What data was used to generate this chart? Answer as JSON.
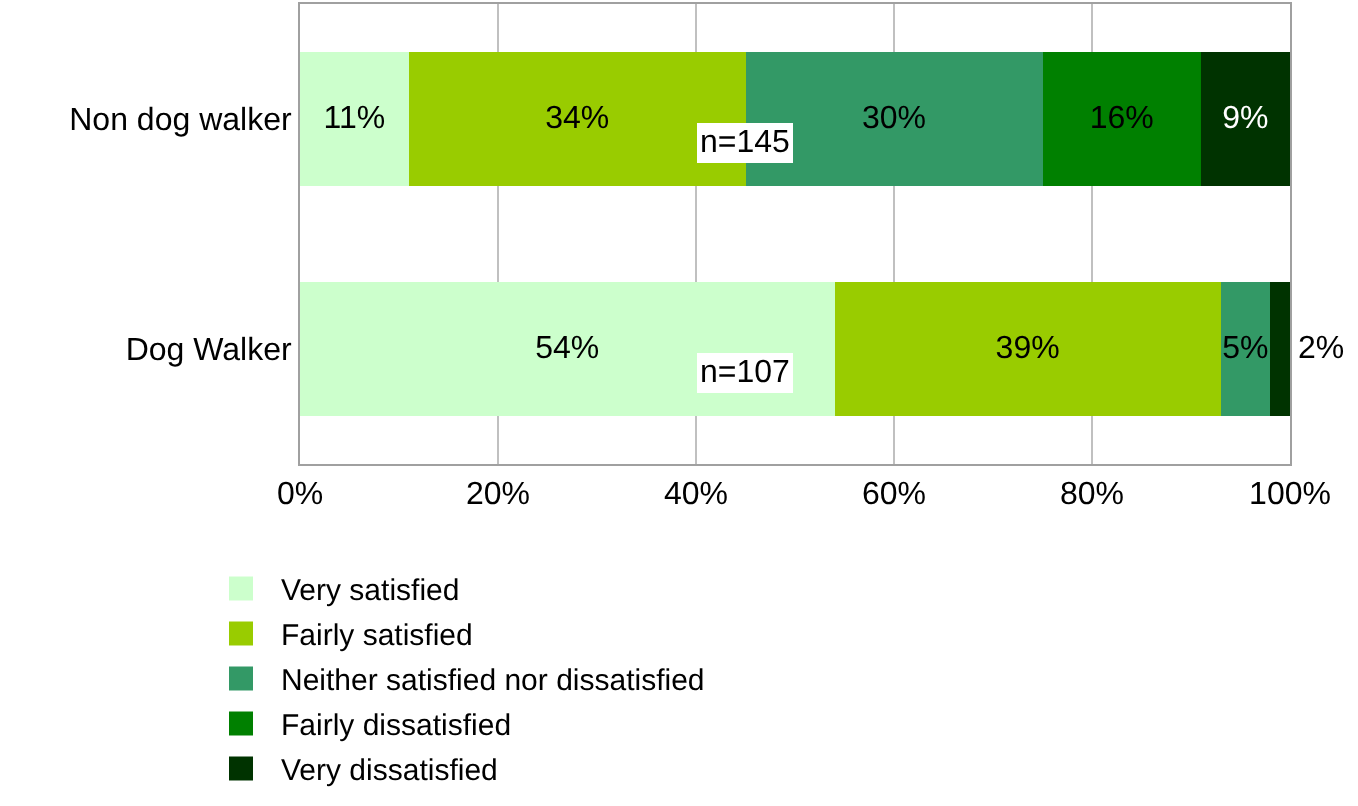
{
  "chart_data": {
    "type": "bar",
    "orientation": "horizontal",
    "stacked": true,
    "categories": [
      "Non dog walker",
      "Dog Walker"
    ],
    "series": [
      {
        "name": "Very satisfied",
        "color": "#ccffcc",
        "values": [
          11,
          54
        ],
        "value_labels": [
          "11%",
          "54%"
        ]
      },
      {
        "name": "Fairly satisfied",
        "color": "#99cc00",
        "values": [
          34,
          39
        ],
        "value_labels": [
          "34%",
          "39%"
        ]
      },
      {
        "name": "Neither satisfied nor dissatisfied",
        "color": "#339966",
        "values": [
          30,
          5
        ],
        "value_labels": [
          "30%",
          "5%"
        ]
      },
      {
        "name": "Fairly dissatisfied",
        "color": "#008000",
        "values": [
          16,
          0
        ],
        "value_labels": [
          "16%",
          null
        ]
      },
      {
        "name": "Very dissatisfied",
        "color": "#003300",
        "values": [
          9,
          2
        ],
        "value_labels": [
          "9%",
          "2%"
        ]
      }
    ],
    "xlim": [
      0,
      100
    ],
    "xticks": [
      {
        "value": 0,
        "label": "0%"
      },
      {
        "value": 20,
        "label": "20%"
      },
      {
        "value": 40,
        "label": "40%"
      },
      {
        "value": 60,
        "label": "60%"
      },
      {
        "value": 80,
        "label": "80%"
      },
      {
        "value": 100,
        "label": "100%"
      }
    ],
    "annotations": [
      "n=145",
      "n=107"
    ],
    "grid": "x",
    "legend": "bottom"
  }
}
